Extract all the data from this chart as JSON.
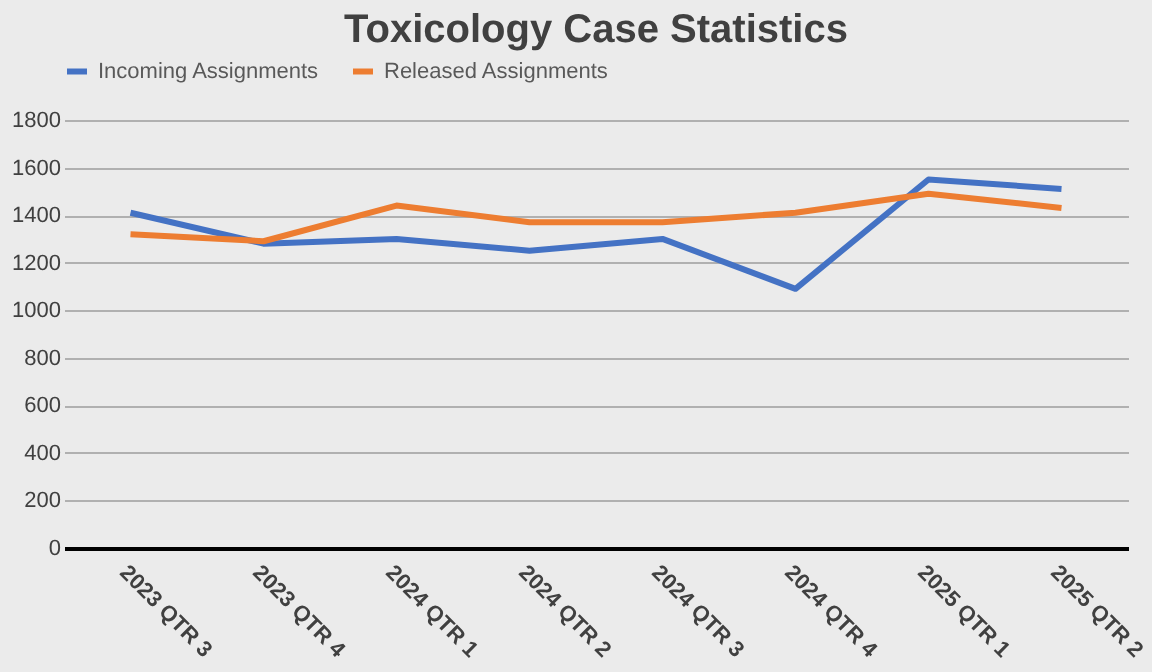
{
  "chart_data": {
    "type": "line",
    "title": "Toxicology Case Statistics",
    "categories": [
      "2023 QTR 3",
      "2023 QTR 4",
      "2024 QTR 1",
      "2024 QTR 2",
      "2024 QTR 3",
      "2024 QTR 4",
      "2025 QTR 1",
      "2025 QTR 2"
    ],
    "series": [
      {
        "name": "Incoming Assignments",
        "color": "#4472c4",
        "values": [
          1410,
          1280,
          1300,
          1250,
          1300,
          1090,
          1550,
          1510
        ]
      },
      {
        "name": "Released Assignments",
        "color": "#ed7d31",
        "values": [
          1320,
          1290,
          1440,
          1370,
          1370,
          1410,
          1490,
          1430
        ]
      }
    ],
    "ylim": [
      0,
      1800
    ],
    "yticks": [
      0,
      200,
      400,
      600,
      800,
      1000,
      1200,
      1400,
      1600,
      1800
    ],
    "grid": "y",
    "legend": "top",
    "marker": "none",
    "line_style": "solid"
  }
}
